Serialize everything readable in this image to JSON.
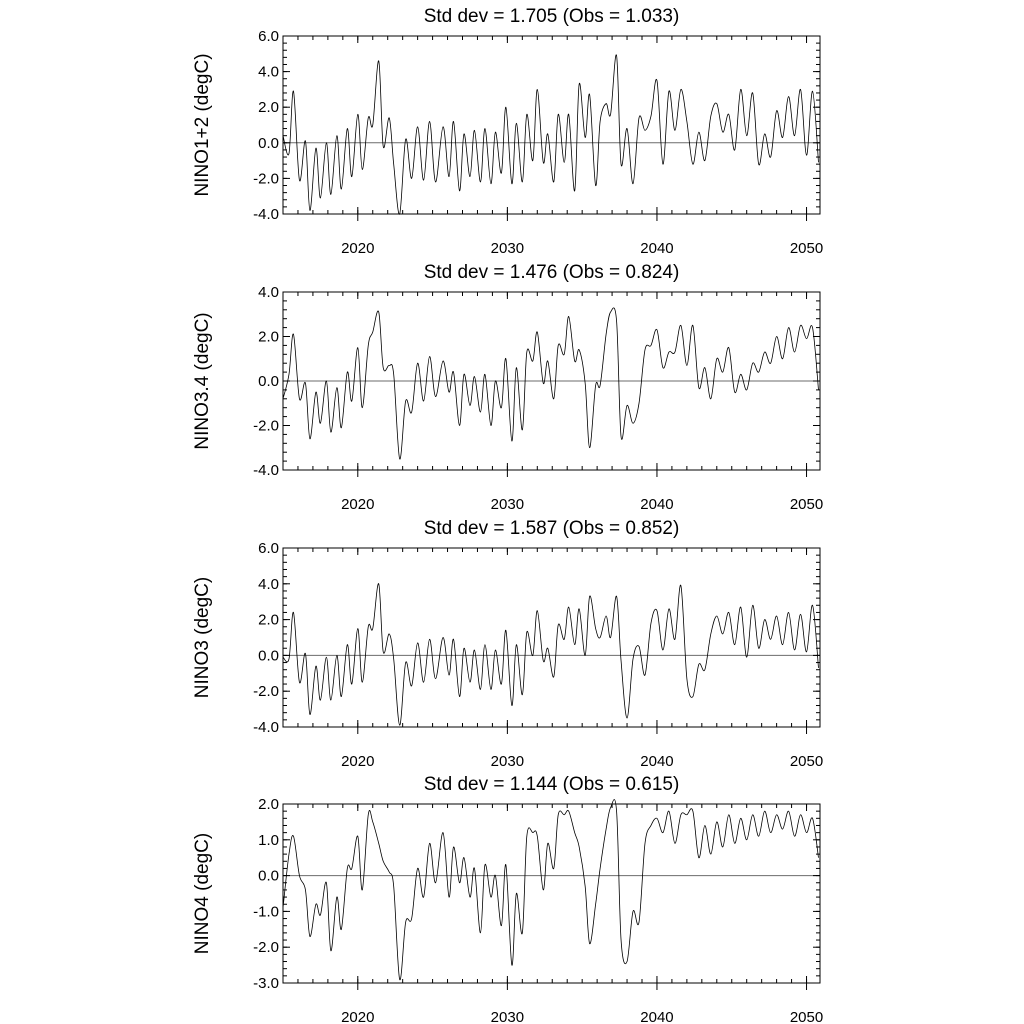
{
  "chart_data": [
    {
      "type": "line",
      "title": "Std dev = 1.705 (Obs = 1.033)",
      "ylabel": "NINO1+2 (degC)",
      "xlim": [
        2015.0,
        2050.9
      ],
      "ylim": [
        -4.0,
        6.0
      ],
      "yticks": [
        -4.0,
        -2.0,
        0.0,
        2.0,
        4.0,
        6.0
      ],
      "ytick_labels": [
        "-4.0",
        "-2.0",
        "0.0",
        "2.0",
        "4.0",
        "6.0"
      ],
      "yminor_step": 0.4,
      "xticks": [
        2020,
        2030,
        2040,
        2050
      ],
      "xtick_labels": [
        "2020",
        "2030",
        "2040",
        "2050"
      ],
      "reference_line": 0.0,
      "series": [
        {
          "x": [
            2015.0,
            2015.4,
            2015.7,
            2016.1,
            2016.5,
            2016.8,
            2017.2,
            2017.5,
            2017.9,
            2018.2,
            2018.6,
            2018.9,
            2019.3,
            2019.6,
            2020.0,
            2020.3,
            2020.7,
            2021.0,
            2021.4,
            2021.7,
            2022.1,
            2022.4,
            2022.8,
            2023.2,
            2023.6,
            2024.0,
            2024.4,
            2024.8,
            2025.2,
            2025.7,
            2026.1,
            2026.4,
            2026.8,
            2027.1,
            2027.5,
            2027.8,
            2028.2,
            2028.5,
            2028.9,
            2029.2,
            2029.6,
            2029.9,
            2030.3,
            2030.6,
            2031.0,
            2031.3,
            2031.7,
            2032.0,
            2032.4,
            2032.7,
            2033.1,
            2033.4,
            2033.8,
            2034.1,
            2034.5,
            2034.8,
            2035.2,
            2035.5,
            2035.9,
            2036.2,
            2036.6,
            2036.9,
            2037.3,
            2037.6,
            2038.0,
            2038.4,
            2038.8,
            2039.2,
            2039.6,
            2040.0,
            2040.4,
            2040.8,
            2041.2,
            2041.6,
            2042.0,
            2042.4,
            2042.8,
            2043.2,
            2043.6,
            2044.0,
            2044.4,
            2044.8,
            2045.2,
            2045.6,
            2046.0,
            2046.4,
            2046.8,
            2047.2,
            2047.6,
            2048.0,
            2048.4,
            2048.8,
            2049.2,
            2049.6,
            2050.0,
            2050.4,
            2050.8
          ],
          "y": [
            0.4,
            -0.6,
            2.9,
            -2.1,
            0.1,
            -3.8,
            -0.3,
            -3.1,
            0.0,
            -2.9,
            0.4,
            -2.6,
            0.8,
            -1.9,
            1.6,
            -1.5,
            1.4,
            1.0,
            4.6,
            -0.2,
            1.4,
            -1.2,
            -4.0,
            0.2,
            -2.0,
            0.9,
            -2.1,
            1.2,
            -2.2,
            0.9,
            -1.9,
            1.2,
            -2.7,
            0.5,
            -1.9,
            0.7,
            -2.2,
            0.8,
            -2.3,
            0.6,
            -1.7,
            2.0,
            -2.3,
            1.1,
            -2.2,
            1.6,
            -1.0,
            3.0,
            -1.1,
            0.5,
            -2.2,
            1.6,
            -1.1,
            1.6,
            -2.7,
            3.3,
            0.3,
            2.7,
            -2.4,
            1.2,
            2.2,
            1.6,
            4.9,
            -1.2,
            0.8,
            -2.3,
            1.4,
            0.7,
            1.5,
            3.5,
            -1.2,
            2.9,
            0.7,
            3.0,
            1.2,
            -1.2,
            0.6,
            -1.0,
            1.5,
            2.2,
            0.6,
            1.6,
            -0.4,
            3.0,
            0.4,
            2.8,
            -1.2,
            0.5,
            -0.8,
            1.8,
            0.3,
            2.6,
            0.4,
            3.0,
            -0.7,
            2.9,
            -1.1
          ]
        }
      ]
    },
    {
      "type": "line",
      "title": "Std dev = 1.476 (Obs = 0.824)",
      "ylabel": "NINO3.4 (degC)",
      "xlim": [
        2015.0,
        2050.9
      ],
      "ylim": [
        -4.0,
        4.0
      ],
      "yticks": [
        -4.0,
        -2.0,
        0.0,
        2.0,
        4.0
      ],
      "ytick_labels": [
        "-4.0",
        "-2.0",
        "0.0",
        "2.0",
        "4.0"
      ],
      "yminor_step": 0.4,
      "xticks": [
        2020,
        2030,
        2040,
        2050
      ],
      "xtick_labels": [
        "2020",
        "2030",
        "2040",
        "2050"
      ],
      "reference_line": 0.0,
      "series": [
        {
          "x": [
            2015.0,
            2015.4,
            2015.7,
            2016.1,
            2016.5,
            2016.8,
            2017.2,
            2017.5,
            2017.9,
            2018.2,
            2018.6,
            2018.9,
            2019.3,
            2019.6,
            2020.0,
            2020.3,
            2020.7,
            2021.0,
            2021.4,
            2021.7,
            2022.1,
            2022.4,
            2022.8,
            2023.2,
            2023.6,
            2024.0,
            2024.4,
            2024.8,
            2025.2,
            2025.7,
            2026.1,
            2026.4,
            2026.8,
            2027.1,
            2027.5,
            2027.8,
            2028.2,
            2028.5,
            2028.9,
            2029.2,
            2029.6,
            2029.9,
            2030.3,
            2030.6,
            2031.0,
            2031.3,
            2031.7,
            2032.0,
            2032.4,
            2032.7,
            2033.1,
            2033.4,
            2033.8,
            2034.1,
            2034.5,
            2034.8,
            2035.2,
            2035.5,
            2035.9,
            2036.2,
            2036.6,
            2036.9,
            2037.3,
            2037.6,
            2038.0,
            2038.4,
            2038.8,
            2039.2,
            2039.6,
            2040.0,
            2040.4,
            2040.8,
            2041.2,
            2041.6,
            2042.0,
            2042.4,
            2042.8,
            2043.2,
            2043.6,
            2044.0,
            2044.4,
            2044.8,
            2045.2,
            2045.6,
            2046.0,
            2046.4,
            2046.8,
            2047.2,
            2047.6,
            2048.0,
            2048.4,
            2048.8,
            2049.2,
            2049.6,
            2050.0,
            2050.4,
            2050.8
          ],
          "y": [
            -0.8,
            0.3,
            2.1,
            -0.8,
            -0.1,
            -2.6,
            -0.5,
            -1.9,
            0.0,
            -2.3,
            -0.3,
            -2.1,
            0.4,
            -0.9,
            1.5,
            -1.2,
            1.6,
            2.2,
            3.1,
            0.6,
            0.7,
            0.3,
            -3.5,
            -0.9,
            -1.4,
            0.8,
            -0.9,
            1.1,
            -0.7,
            0.9,
            -0.5,
            0.4,
            -2.0,
            0.3,
            -1.1,
            0.2,
            -1.4,
            0.3,
            -2.0,
            0.0,
            -1.2,
            1.0,
            -2.7,
            0.6,
            -2.2,
            1.3,
            0.9,
            2.2,
            -0.1,
            0.9,
            -0.8,
            1.6,
            1.2,
            2.9,
            0.9,
            1.4,
            -0.1,
            -3.0,
            -0.2,
            -0.2,
            2.1,
            3.1,
            2.7,
            -2.5,
            -1.1,
            -1.9,
            -1.0,
            1.4,
            1.6,
            2.3,
            0.6,
            1.3,
            1.3,
            2.5,
            0.7,
            2.5,
            -0.3,
            0.6,
            -0.8,
            1.0,
            0.4,
            1.5,
            -0.5,
            0.3,
            -0.4,
            0.8,
            0.4,
            1.3,
            0.8,
            2.0,
            1.0,
            2.4,
            1.3,
            2.5,
            1.9,
            2.4,
            -0.4
          ]
        }
      ]
    },
    {
      "type": "line",
      "title": "Std dev = 1.587 (Obs = 0.852)",
      "ylabel": "NINO3 (degC)",
      "xlim": [
        2015.0,
        2050.9
      ],
      "ylim": [
        -4.0,
        6.0
      ],
      "yticks": [
        -4.0,
        -2.0,
        0.0,
        2.0,
        4.0,
        6.0
      ],
      "ytick_labels": [
        "-4.0",
        "-2.0",
        "0.0",
        "2.0",
        "4.0",
        "6.0"
      ],
      "yminor_step": 0.4,
      "xticks": [
        2020,
        2030,
        2040,
        2050
      ],
      "xtick_labels": [
        "2020",
        "2030",
        "2040",
        "2050"
      ],
      "reference_line": 0.0,
      "series": [
        {
          "x": [
            2015.0,
            2015.4,
            2015.7,
            2016.1,
            2016.5,
            2016.8,
            2017.2,
            2017.5,
            2017.9,
            2018.2,
            2018.6,
            2018.9,
            2019.3,
            2019.6,
            2020.0,
            2020.3,
            2020.7,
            2021.0,
            2021.4,
            2021.7,
            2022.1,
            2022.4,
            2022.8,
            2023.2,
            2023.6,
            2024.0,
            2024.4,
            2024.8,
            2025.2,
            2025.7,
            2026.1,
            2026.4,
            2026.8,
            2027.1,
            2027.5,
            2027.8,
            2028.2,
            2028.5,
            2028.9,
            2029.2,
            2029.6,
            2029.9,
            2030.3,
            2030.6,
            2031.0,
            2031.3,
            2031.7,
            2032.0,
            2032.4,
            2032.7,
            2033.1,
            2033.4,
            2033.8,
            2034.1,
            2034.5,
            2034.8,
            2035.2,
            2035.5,
            2035.9,
            2036.2,
            2036.6,
            2036.9,
            2037.3,
            2037.6,
            2038.0,
            2038.4,
            2038.8,
            2039.2,
            2039.6,
            2040.0,
            2040.4,
            2040.8,
            2041.2,
            2041.6,
            2042.0,
            2042.4,
            2042.8,
            2043.2,
            2043.6,
            2044.0,
            2044.4,
            2044.8,
            2045.2,
            2045.6,
            2046.0,
            2046.4,
            2046.8,
            2047.2,
            2047.6,
            2048.0,
            2048.4,
            2048.8,
            2049.2,
            2049.6,
            2050.0,
            2050.4,
            2050.8
          ],
          "y": [
            -0.1,
            -0.2,
            2.4,
            -1.5,
            0.1,
            -3.3,
            -0.6,
            -2.5,
            -0.1,
            -2.5,
            0.0,
            -2.3,
            0.6,
            -1.6,
            1.5,
            -1.5,
            1.6,
            1.5,
            4.0,
            0.2,
            1.2,
            -0.2,
            -3.9,
            -0.4,
            -1.7,
            0.7,
            -1.5,
            0.9,
            -1.3,
            1.0,
            -1.1,
            0.9,
            -2.3,
            0.4,
            -1.5,
            0.3,
            -1.9,
            0.6,
            -1.9,
            0.3,
            -1.6,
            1.4,
            -2.8,
            0.6,
            -2.2,
            1.3,
            0.0,
            2.5,
            -0.3,
            0.4,
            -1.2,
            1.7,
            0.9,
            2.7,
            0.6,
            2.6,
            0.0,
            3.3,
            1.5,
            1.0,
            2.2,
            1.0,
            3.3,
            -0.3,
            -3.5,
            -0.2,
            0.5,
            -1.1,
            1.8,
            2.5,
            0.3,
            2.6,
            0.9,
            3.9,
            -1.3,
            -2.3,
            -0.5,
            -0.8,
            1.2,
            2.2,
            1.2,
            2.4,
            0.6,
            2.7,
            -0.1,
            2.8,
            0.4,
            2.0,
            0.9,
            2.2,
            0.6,
            2.4,
            0.3,
            2.3,
            0.2,
            2.8,
            -0.7
          ]
        }
      ]
    },
    {
      "type": "line",
      "title": "Std dev = 1.144 (Obs = 0.615)",
      "ylabel": "NINO4 (degC)",
      "xlim": [
        2015.0,
        2050.9
      ],
      "ylim": [
        -3.0,
        2.0
      ],
      "yticks": [
        -3.0,
        -2.0,
        -1.0,
        0.0,
        1.0,
        2.0
      ],
      "ytick_labels": [
        "-3.0",
        "-2.0",
        "-1.0",
        "0.0",
        "1.0",
        "2.0"
      ],
      "yminor_step": 0.2,
      "xticks": [
        2020,
        2030,
        2040,
        2050
      ],
      "xtick_labels": [
        "2020",
        "2030",
        "2040",
        "2050"
      ],
      "reference_line": 0.0,
      "series": [
        {
          "x": [
            2015.0,
            2015.4,
            2015.7,
            2016.1,
            2016.5,
            2016.8,
            2017.2,
            2017.5,
            2017.9,
            2018.2,
            2018.6,
            2018.9,
            2019.3,
            2019.6,
            2020.0,
            2020.3,
            2020.7,
            2021.0,
            2021.4,
            2021.7,
            2022.1,
            2022.4,
            2022.8,
            2023.2,
            2023.6,
            2024.0,
            2024.4,
            2024.8,
            2025.2,
            2025.7,
            2026.1,
            2026.4,
            2026.8,
            2027.1,
            2027.5,
            2027.8,
            2028.2,
            2028.5,
            2028.9,
            2029.2,
            2029.6,
            2029.9,
            2030.3,
            2030.6,
            2031.0,
            2031.3,
            2031.7,
            2032.0,
            2032.4,
            2032.7,
            2033.1,
            2033.4,
            2033.8,
            2034.1,
            2034.5,
            2034.8,
            2035.2,
            2035.5,
            2035.9,
            2036.2,
            2036.6,
            2036.9,
            2037.3,
            2037.6,
            2038.0,
            2038.4,
            2038.8,
            2039.2,
            2039.6,
            2040.0,
            2040.4,
            2040.8,
            2041.2,
            2041.6,
            2042.0,
            2042.4,
            2042.8,
            2043.2,
            2043.6,
            2044.0,
            2044.4,
            2044.8,
            2045.2,
            2045.6,
            2046.0,
            2046.4,
            2046.8,
            2047.2,
            2047.6,
            2048.0,
            2048.4,
            2048.8,
            2049.2,
            2049.6,
            2050.0,
            2050.4,
            2050.8
          ],
          "y": [
            -0.9,
            0.6,
            1.1,
            0.0,
            -0.4,
            -1.7,
            -0.8,
            -1.1,
            -0.2,
            -2.1,
            -0.6,
            -1.5,
            0.2,
            0.2,
            1.1,
            -0.4,
            1.7,
            1.5,
            0.9,
            0.4,
            0.1,
            -0.3,
            -2.9,
            -1.3,
            -1.2,
            0.2,
            -0.6,
            0.9,
            -0.2,
            1.2,
            -0.6,
            0.8,
            -0.2,
            0.5,
            -0.6,
            0.2,
            -1.6,
            0.3,
            -0.6,
            0.0,
            -1.4,
            0.3,
            -2.5,
            -0.5,
            -1.6,
            1.1,
            1.2,
            1.1,
            -0.4,
            0.9,
            0.2,
            1.7,
            1.7,
            1.8,
            1.2,
            0.8,
            -0.3,
            -1.9,
            -0.8,
            0.2,
            1.3,
            1.9,
            1.8,
            -1.8,
            -2.4,
            -1.0,
            -1.3,
            0.9,
            1.4,
            1.6,
            1.2,
            1.8,
            0.9,
            1.7,
            1.7,
            1.8,
            0.5,
            1.4,
            0.6,
            1.5,
            0.8,
            1.7,
            0.9,
            1.6,
            1.0,
            1.7,
            1.1,
            1.8,
            1.2,
            1.7,
            1.3,
            1.8,
            1.1,
            1.7,
            1.2,
            1.6,
            0.5
          ]
        }
      ]
    }
  ]
}
